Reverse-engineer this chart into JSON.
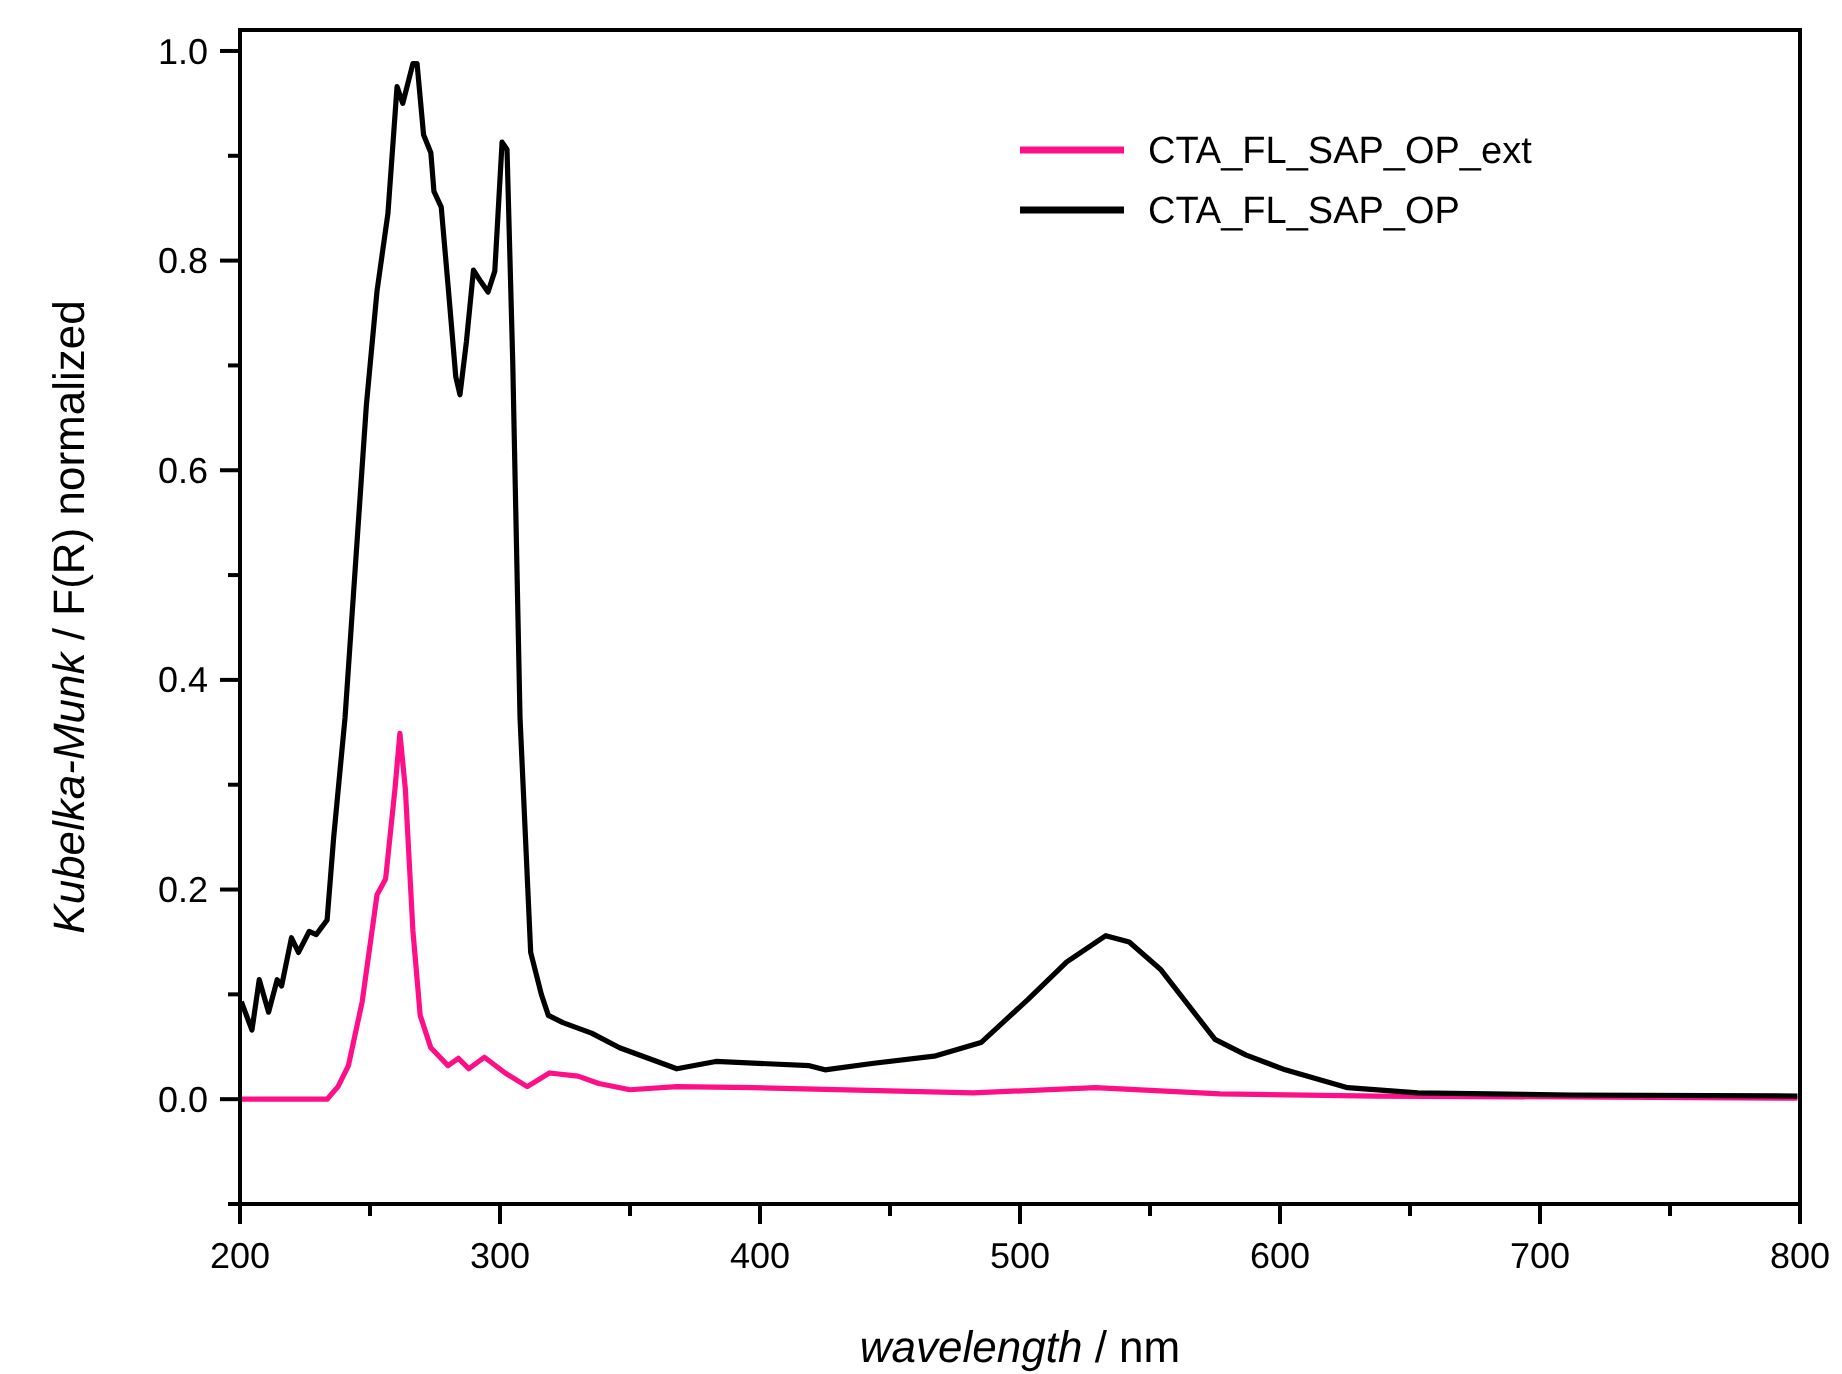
{
  "chart_data": {
    "type": "line",
    "xlabel": "wavelength / nm",
    "ylabel": "Kubelka-Munk / F(R) normalized",
    "xlim": [
      200,
      800
    ],
    "ylim": [
      -0.1,
      1.02
    ],
    "xticks": [
      200,
      {
        "value": 250,
        "label": null
      },
      300,
      {
        "value": 350,
        "label": null
      },
      400,
      {
        "value": 450,
        "label": null
      },
      500,
      {
        "value": 550,
        "label": null
      },
      600,
      {
        "value": 650,
        "label": null
      },
      700,
      {
        "value": 750,
        "label": null
      },
      800
    ],
    "yticks": [
      {
        "value": -0.1,
        "label": null
      },
      {
        "value": 0,
        "label": "0.0"
      },
      {
        "value": 0.1,
        "label": null
      },
      0.2,
      {
        "value": 0.3,
        "label": null
      },
      0.4,
      {
        "value": 0.5,
        "label": null
      },
      0.6,
      {
        "value": 0.7,
        "label": null
      },
      0.8,
      {
        "value": 0.9,
        "label": null
      },
      {
        "value": 1,
        "label": "1.0"
      }
    ],
    "grid": false,
    "legend": "top right",
    "marker": "none",
    "line_style": "solid",
    "series": [
      {
        "name": "CTA_FL_SAP_OP_ext",
        "color": "#ff0f87",
        "x": [
          200,
          233.5,
          237.7,
          241.7,
          247,
          252.7,
          256,
          259.6,
          261.5,
          263.6,
          266.5,
          269.3,
          273.4,
          280,
          284,
          288,
          294,
          302,
          310.5,
          319,
          330,
          338,
          350,
          368,
          397,
          482,
          529,
          577,
          637,
          799
        ],
        "values": [
          0,
          0,
          0.012,
          0.032,
          0.093,
          0.195,
          0.21,
          0.296,
          0.349,
          0.296,
          0.161,
          0.08,
          0.049,
          0.032,
          0.039,
          0.029,
          0.04,
          0.025,
          0.012,
          0.025,
          0.022,
          0.015,
          0.009,
          0.012,
          0.011,
          0.006,
          0.011,
          0.005,
          0.003,
          0.001
        ]
      },
      {
        "name": "CTA_FL_SAP_OP",
        "color": "#000000",
        "x": [
          200.5,
          204.6,
          207.4,
          211,
          214.3,
          216,
          219.8,
          222.5,
          226.6,
          229.3,
          233.5,
          236,
          240.4,
          244.5,
          248.6,
          252.7,
          256.9,
          260.4,
          262.6,
          266.5,
          268.1,
          270.6,
          273.4,
          274.6,
          277.4,
          280.2,
          283,
          284.6,
          287.1,
          289.8,
          292.6,
          295.4,
          298,
          300.8,
          302.7,
          304.9,
          307.7,
          311.8,
          315.9,
          318.6,
          324.2,
          335.2,
          346,
          357,
          368,
          383,
          419,
          425,
          443,
          467,
          485,
          503,
          518,
          533,
          542,
          554,
          575,
          587,
          602,
          626,
          653,
          712,
          799
        ],
        "values": [
          0.093,
          0.066,
          0.114,
          0.083,
          0.114,
          0.108,
          0.154,
          0.14,
          0.16,
          0.157,
          0.171,
          0.249,
          0.364,
          0.513,
          0.662,
          0.771,
          0.845,
          0.966,
          0.95,
          0.988,
          0.988,
          0.92,
          0.903,
          0.866,
          0.851,
          0.771,
          0.689,
          0.672,
          0.723,
          0.791,
          0.78,
          0.77,
          0.79,
          0.913,
          0.906,
          0.703,
          0.364,
          0.14,
          0.1,
          0.08,
          0.073,
          0.063,
          0.049,
          0.039,
          0.029,
          0.036,
          0.032,
          0.028,
          0.034,
          0.041,
          0.054,
          0.095,
          0.131,
          0.156,
          0.15,
          0.124,
          0.057,
          0.042,
          0.028,
          0.011,
          0.006,
          0.004,
          0.003
        ]
      }
    ]
  }
}
